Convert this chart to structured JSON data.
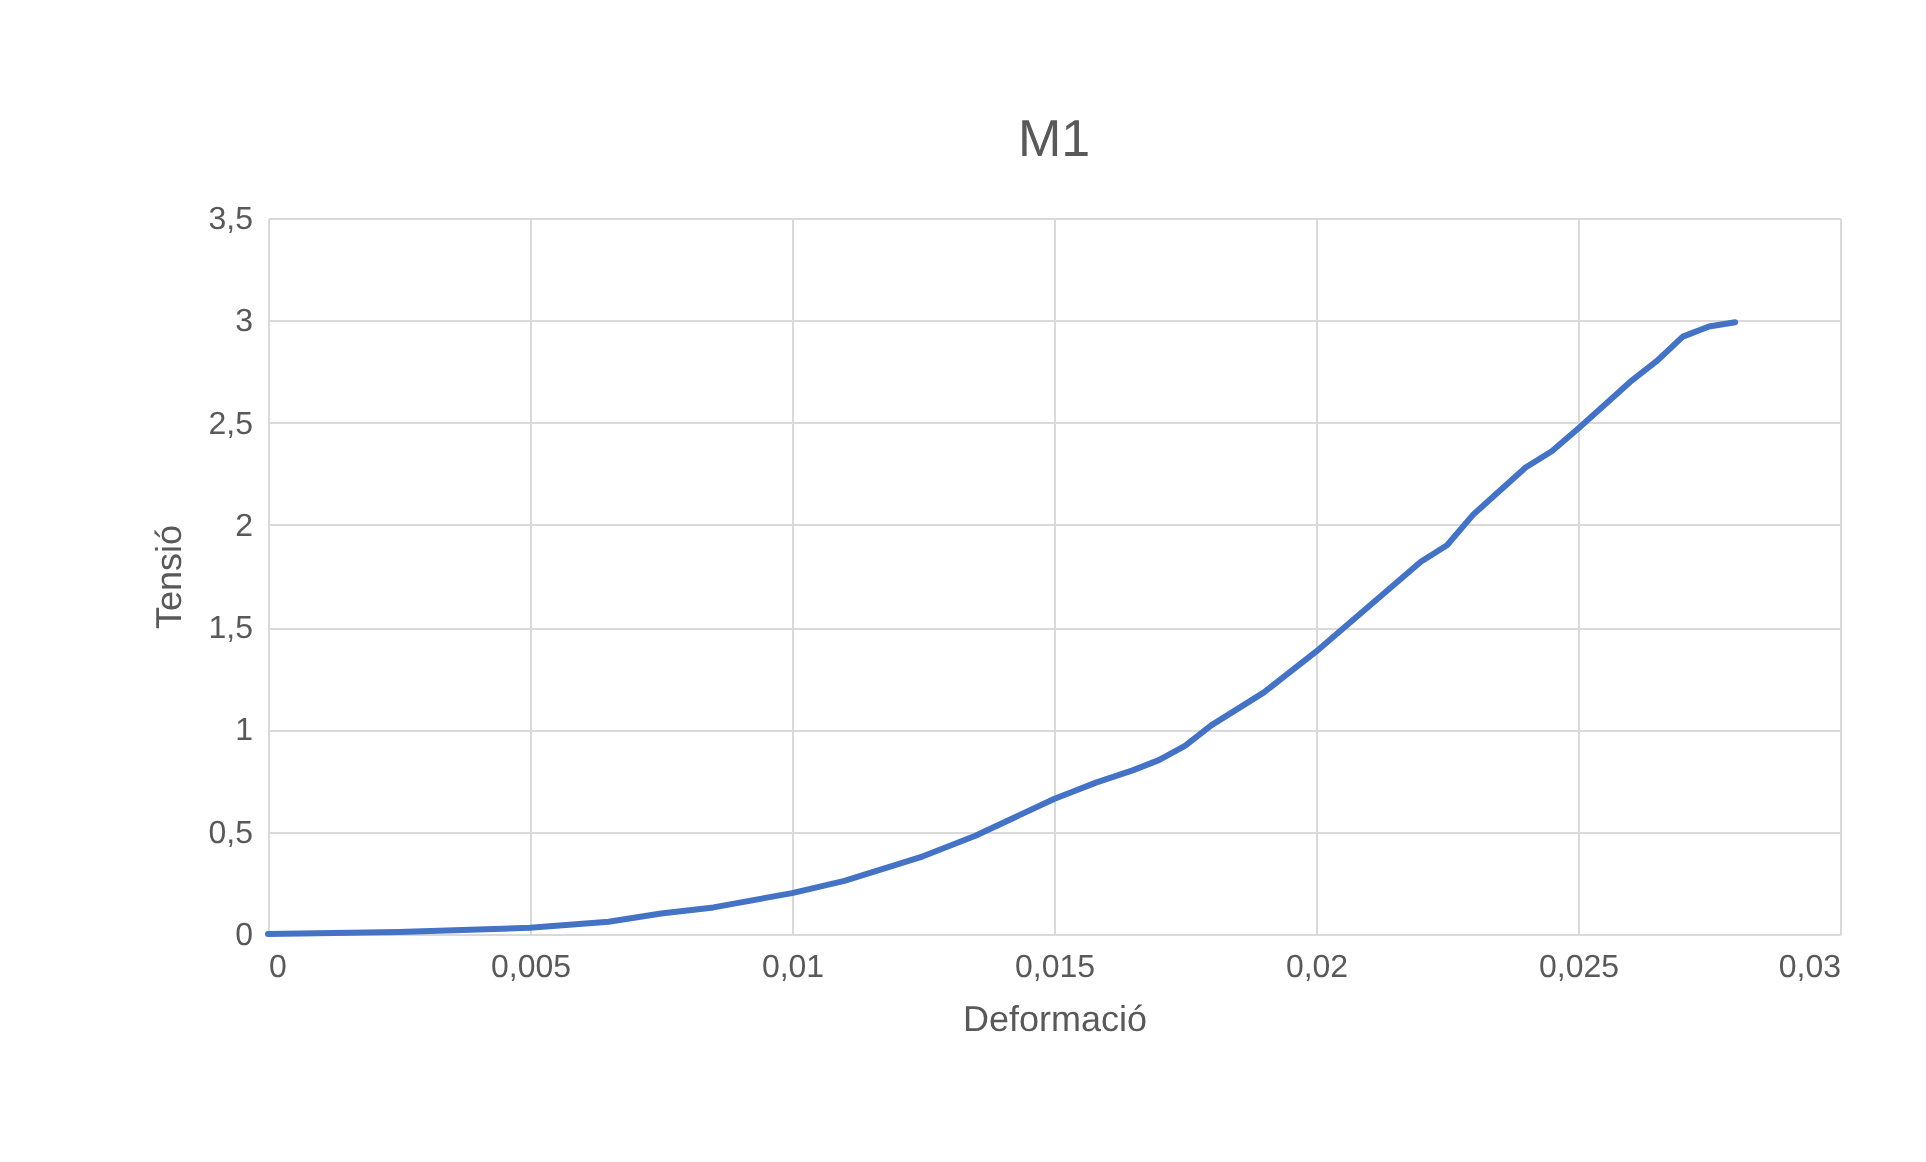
{
  "chart_data": {
    "type": "line",
    "title": "M1",
    "xlabel": "Deformació",
    "ylabel": "Tensió",
    "x": [
      0,
      0.0025,
      0.005,
      0.0065,
      0.0075,
      0.0085,
      0.01,
      0.011,
      0.0125,
      0.0135,
      0.015,
      0.0158,
      0.0165,
      0.017,
      0.0175,
      0.018,
      0.019,
      0.02,
      0.021,
      0.022,
      0.0225,
      0.023,
      0.024,
      0.0245,
      0.025,
      0.026,
      0.0265,
      0.027,
      0.0275,
      0.028
    ],
    "series": [
      {
        "color": "#4472c4",
        "values": [
          0,
          0.01,
          0.03,
          0.06,
          0.1,
          0.13,
          0.2,
          0.26,
          0.38,
          0.48,
          0.66,
          0.74,
          0.8,
          0.85,
          0.92,
          1.02,
          1.18,
          1.38,
          1.6,
          1.82,
          1.9,
          2.05,
          2.28,
          2.36,
          2.47,
          2.7,
          2.8,
          2.92,
          2.97,
          2.99
        ]
      }
    ],
    "xlim": [
      0,
      0.03
    ],
    "xticks": [
      0,
      {
        "value": 0.005,
        "label": "0,005"
      },
      {
        "value": 0.01,
        "label": "0,01"
      },
      {
        "value": 0.015,
        "label": "0,015"
      },
      {
        "value": 0.02,
        "label": "0,02"
      },
      {
        "value": 0.025,
        "label": "0,025"
      },
      {
        "value": 0.03,
        "label": "0,03"
      }
    ],
    "ylim": [
      0,
      3.5
    ],
    "yticks": [
      0,
      {
        "value": 0.5,
        "label": "0,5"
      },
      1,
      {
        "value": 1.5,
        "label": "1,5"
      },
      2,
      {
        "value": 2.5,
        "label": "2,5"
      },
      3,
      {
        "value": 3.5,
        "label": "3,5"
      }
    ],
    "grid": true,
    "line_style": "solid",
    "marker": "none"
  }
}
